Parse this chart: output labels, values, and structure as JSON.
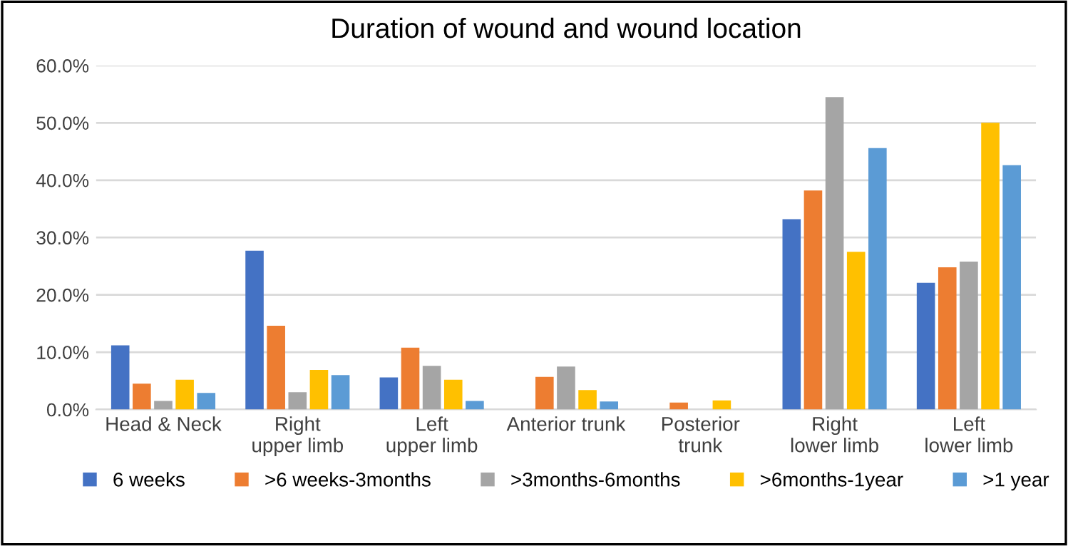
{
  "chart_data": {
    "type": "bar",
    "title": "Duration of wound and wound location",
    "categories": [
      "Head & Neck",
      "Right upper limb",
      "Left upper limb",
      "Anterior trunk",
      "Posterior trunk",
      "Right lower limb",
      "Left lower limb"
    ],
    "series": [
      {
        "name": "6 weeks",
        "color": "#4472c4",
        "values": [
          11.2,
          27.7,
          5.6,
          0,
          0,
          33.2,
          22.1
        ]
      },
      {
        "name": ">6 weeks-3months",
        "color": "#ed7d31",
        "values": [
          4.5,
          14.6,
          10.8,
          5.7,
          1.2,
          38.2,
          24.8
        ]
      },
      {
        "name": ">3months-6months",
        "color": "#a5a5a5",
        "values": [
          1.5,
          3.0,
          7.6,
          7.5,
          0,
          54.5,
          25.8
        ]
      },
      {
        "name": ">6months-1year",
        "color": "#ffc000",
        "values": [
          5.2,
          6.9,
          5.2,
          3.4,
          1.6,
          27.5,
          50.0
        ]
      },
      {
        "name": ">1 year",
        "color": "#5b9bd5",
        "values": [
          2.9,
          6.0,
          1.5,
          1.4,
          0,
          45.6,
          42.6
        ]
      }
    ],
    "ylim": [
      0,
      60
    ],
    "yticks": [
      {
        "value": 0,
        "label": "0.0%"
      },
      {
        "value": 10,
        "label": "10.0%"
      },
      {
        "value": 20,
        "label": "20.0%"
      },
      {
        "value": 30,
        "label": "30.0%"
      },
      {
        "value": 40,
        "label": "40.0%"
      },
      {
        "value": 50,
        "label": "50.0%"
      },
      {
        "value": 60,
        "label": "60.0%"
      }
    ],
    "grid": "y",
    "legend": "bottom"
  }
}
